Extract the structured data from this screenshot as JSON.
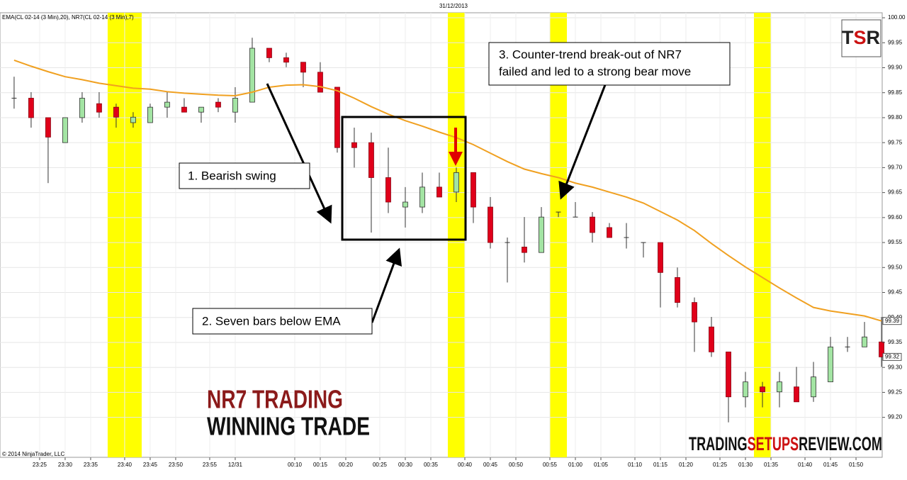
{
  "chart_data": {
    "type": "candlestick",
    "title": "31/12/2013",
    "indicator_label": "EMA(CL 02-14 (3 Min),20), NR7(CL 02-14 (3 Min),7)",
    "copyright": "© 2014 NinjaTrader, LLC",
    "up_color": "#a3e4a3",
    "down_color": "#e0001a",
    "open": [
      99.839,
      99.839,
      99.8,
      99.75,
      99.8,
      99.828,
      99.821,
      99.79,
      99.79,
      99.821,
      99.821,
      99.811,
      99.831,
      99.811,
      99.831,
      99.939,
      99.92,
      99.911,
      99.891,
      99.861,
      99.75,
      99.75,
      99.68,
      99.621,
      99.621,
      99.661,
      99.651,
      99.69,
      99.621,
      99.55,
      99.541,
      99.53,
      99.611,
      99.601,
      99.601,
      99.58,
      99.56,
      99.55,
      99.55,
      99.48,
      99.43,
      99.381,
      99.331,
      99.241,
      99.261,
      99.251,
      99.261,
      99.241,
      99.271,
      99.341,
      99.341,
      99.351
    ],
    "high": [
      99.882,
      99.851,
      99.8,
      99.8,
      99.851,
      99.851,
      99.828,
      99.811,
      99.828,
      99.851,
      99.839,
      99.821,
      99.839,
      99.861,
      99.96,
      99.939,
      99.93,
      99.911,
      99.911,
      99.861,
      99.78,
      99.77,
      99.74,
      99.661,
      99.69,
      99.69,
      99.7,
      99.69,
      99.641,
      99.56,
      99.601,
      99.621,
      99.611,
      99.631,
      99.611,
      99.589,
      99.589,
      99.55,
      99.55,
      99.5,
      99.44,
      99.401,
      99.331,
      99.291,
      99.271,
      99.291,
      99.301,
      99.311,
      99.361,
      99.361,
      99.391,
      99.401
    ],
    "low": [
      99.818,
      99.78,
      99.669,
      99.75,
      99.79,
      99.8,
      99.78,
      99.78,
      99.79,
      99.8,
      99.811,
      99.79,
      99.811,
      99.79,
      99.831,
      99.911,
      99.901,
      99.861,
      99.851,
      99.73,
      99.7,
      99.57,
      99.609,
      99.58,
      99.609,
      99.641,
      99.631,
      99.589,
      99.538,
      99.47,
      99.51,
      99.53,
      99.601,
      99.601,
      99.55,
      99.56,
      99.538,
      99.52,
      99.42,
      99.42,
      99.331,
      99.321,
      99.19,
      99.22,
      99.22,
      99.22,
      99.231,
      99.231,
      99.271,
      99.331,
      99.341,
      99.301
    ],
    "close": [
      99.839,
      99.8,
      99.761,
      99.8,
      99.839,
      99.811,
      99.801,
      99.801,
      99.821,
      99.831,
      99.811,
      99.821,
      99.821,
      99.839,
      99.939,
      99.92,
      99.911,
      99.891,
      99.851,
      99.74,
      99.74,
      99.68,
      99.631,
      99.631,
      99.661,
      99.641,
      99.69,
      99.621,
      99.55,
      99.55,
      99.53,
      99.601,
      99.611,
      99.601,
      99.57,
      99.56,
      99.56,
      99.55,
      99.49,
      99.43,
      99.391,
      99.331,
      99.241,
      99.271,
      99.251,
      99.271,
      99.231,
      99.281,
      99.341,
      99.341,
      99.361,
      99.321
    ],
    "close_last_label": "99.32",
    "ema": {
      "color": "#f0a020",
      "last_value_label": "99.39",
      "values": [
        99.915,
        99.903,
        99.892,
        99.882,
        99.876,
        99.869,
        99.864,
        99.859,
        99.857,
        99.852,
        99.849,
        99.847,
        99.845,
        99.844,
        99.851,
        99.861,
        99.865,
        99.866,
        99.862,
        99.854,
        99.839,
        99.822,
        99.807,
        99.794,
        99.783,
        99.771,
        99.76,
        99.746,
        99.729,
        99.712,
        99.697,
        99.688,
        99.68,
        99.669,
        99.661,
        99.651,
        99.641,
        99.629,
        99.612,
        99.595,
        99.574,
        99.548,
        99.524,
        99.501,
        99.48,
        99.459,
        99.439,
        99.42,
        99.413,
        99.408,
        99.403,
        99.393
      ]
    },
    "highlight_color": "#ffff00",
    "highlights": [
      {
        "from": 5.5,
        "to": 7.5
      },
      {
        "from": 25.5,
        "to": 26.5
      },
      {
        "from": 31.5,
        "to": 32.5
      },
      {
        "from": 43.5,
        "to": 44.5
      }
    ],
    "xlim": [
      -0.83,
      51.04
    ],
    "xticks": [
      {
        "value": 1.5,
        "label": "23:25"
      },
      {
        "value": 3,
        "label": "23:30"
      },
      {
        "value": 4.5,
        "label": "23:35"
      },
      {
        "value": 6.5,
        "label": "23:40"
      },
      {
        "value": 8,
        "label": "23:45"
      },
      {
        "value": 9.5,
        "label": "23:50"
      },
      {
        "value": 11.5,
        "label": "23:55"
      },
      {
        "value": 13,
        "label": "12/31"
      },
      {
        "value": 16.5,
        "label": "00:10"
      },
      {
        "value": 18,
        "label": "00:15"
      },
      {
        "value": 19.5,
        "label": "00:20"
      },
      {
        "value": 21.5,
        "label": "00:25"
      },
      {
        "value": 23,
        "label": "00:30"
      },
      {
        "value": 24.5,
        "label": "00:35"
      },
      {
        "value": 26.5,
        "label": "00:40"
      },
      {
        "value": 28,
        "label": "00:45"
      },
      {
        "value": 29.5,
        "label": "00:50"
      },
      {
        "value": 31.5,
        "label": "00:55"
      },
      {
        "value": 33,
        "label": "01:00"
      },
      {
        "value": 34.5,
        "label": "01:05"
      },
      {
        "value": 36.5,
        "label": "01:10"
      },
      {
        "value": 38,
        "label": "01:15"
      },
      {
        "value": 39.5,
        "label": "01:20"
      },
      {
        "value": 41.5,
        "label": "01:25"
      },
      {
        "value": 43,
        "label": "01:30"
      },
      {
        "value": 44.5,
        "label": "01:35"
      },
      {
        "value": 46.5,
        "label": "01:40"
      },
      {
        "value": 48,
        "label": "01:45"
      },
      {
        "value": 49.5,
        "label": "01:50"
      }
    ],
    "ylim": [
      99.12,
      100.01
    ],
    "yticks": [
      {
        "value": 99.2,
        "label": "99.20"
      },
      99.25,
      {
        "value": 99.3,
        "label": "99.30"
      },
      99.35,
      {
        "value": 99.4,
        "label": "99.40"
      },
      99.45,
      {
        "value": 99.5,
        "label": "99.50"
      },
      99.55,
      {
        "value": 99.6,
        "label": "99.60"
      },
      99.65,
      {
        "value": 99.7,
        "label": "99.70"
      },
      99.75,
      {
        "value": 99.8,
        "label": "99.80"
      },
      99.85,
      {
        "value": 99.9,
        "label": "99.90"
      },
      99.95,
      {
        "value": 100,
        "label": "100.00"
      }
    ],
    "grid": true,
    "annotations": {
      "bearish_swing": "1. Bearish swing",
      "seven_bars": "2. Seven bars below  EMA",
      "counter_trend": [
        "3. Counter-trend break-out of NR7",
        "failed and led to a strong bear move"
      ]
    },
    "overlay": {
      "headline": "NR7 TRADING",
      "subheadline": "WINNING TRADE",
      "site": [
        "TRADING",
        "SETUPS",
        "REVIEW.COM"
      ],
      "logo": [
        "T",
        "S",
        "R"
      ]
    }
  }
}
